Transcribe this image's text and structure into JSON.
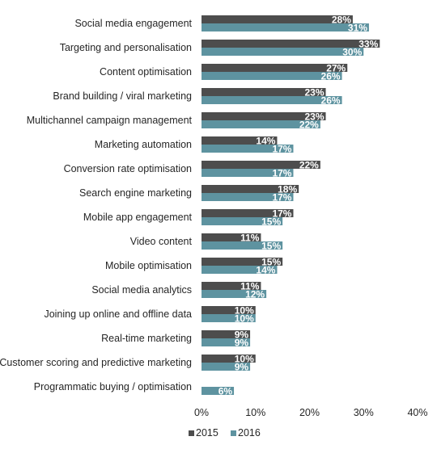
{
  "chart_data": {
    "type": "bar",
    "orientation": "horizontal",
    "title": "",
    "xlabel": "",
    "ylabel": "",
    "xlim": [
      0,
      40
    ],
    "x_ticks": [
      "0%",
      "10%",
      "20%",
      "30%",
      "40%"
    ],
    "grid": false,
    "legend_position": "bottom",
    "categories": [
      "Social media engagement",
      "Targeting and personalisation",
      "Content optimisation",
      "Brand building / viral marketing",
      "Multichannel campaign management",
      "Marketing automation",
      "Conversion rate optimisation",
      "Search engine marketing",
      "Mobile app engagement",
      "Video content",
      "Mobile optimisation",
      "Social media analytics",
      "Joining up online and offline data",
      "Real-time marketing",
      "Customer scoring and predictive marketing",
      "Programmatic buying / optimisation"
    ],
    "series": [
      {
        "name": "2015",
        "color": "#4d4d4d",
        "values": [
          28,
          33,
          27,
          23,
          23,
          14,
          22,
          18,
          17,
          11,
          15,
          11,
          10,
          9,
          10,
          null
        ],
        "labels": [
          "28%",
          "33%",
          "27%",
          "23%",
          "23%",
          "14%",
          "22%",
          "18%",
          "17%",
          "11%",
          "15%",
          "11%",
          "10%",
          "9%",
          "10%",
          ""
        ]
      },
      {
        "name": "2016",
        "color": "#5e93a0",
        "values": [
          31,
          30,
          26,
          26,
          22,
          17,
          17,
          17,
          15,
          15,
          14,
          12,
          10,
          9,
          9,
          6
        ],
        "labels": [
          "31%",
          "30%",
          "26%",
          "26%",
          "22%",
          "17%",
          "17%",
          "17%",
          "15%",
          "15%",
          "14%",
          "12%",
          "10%",
          "9%",
          "9%",
          "6%"
        ]
      }
    ]
  }
}
